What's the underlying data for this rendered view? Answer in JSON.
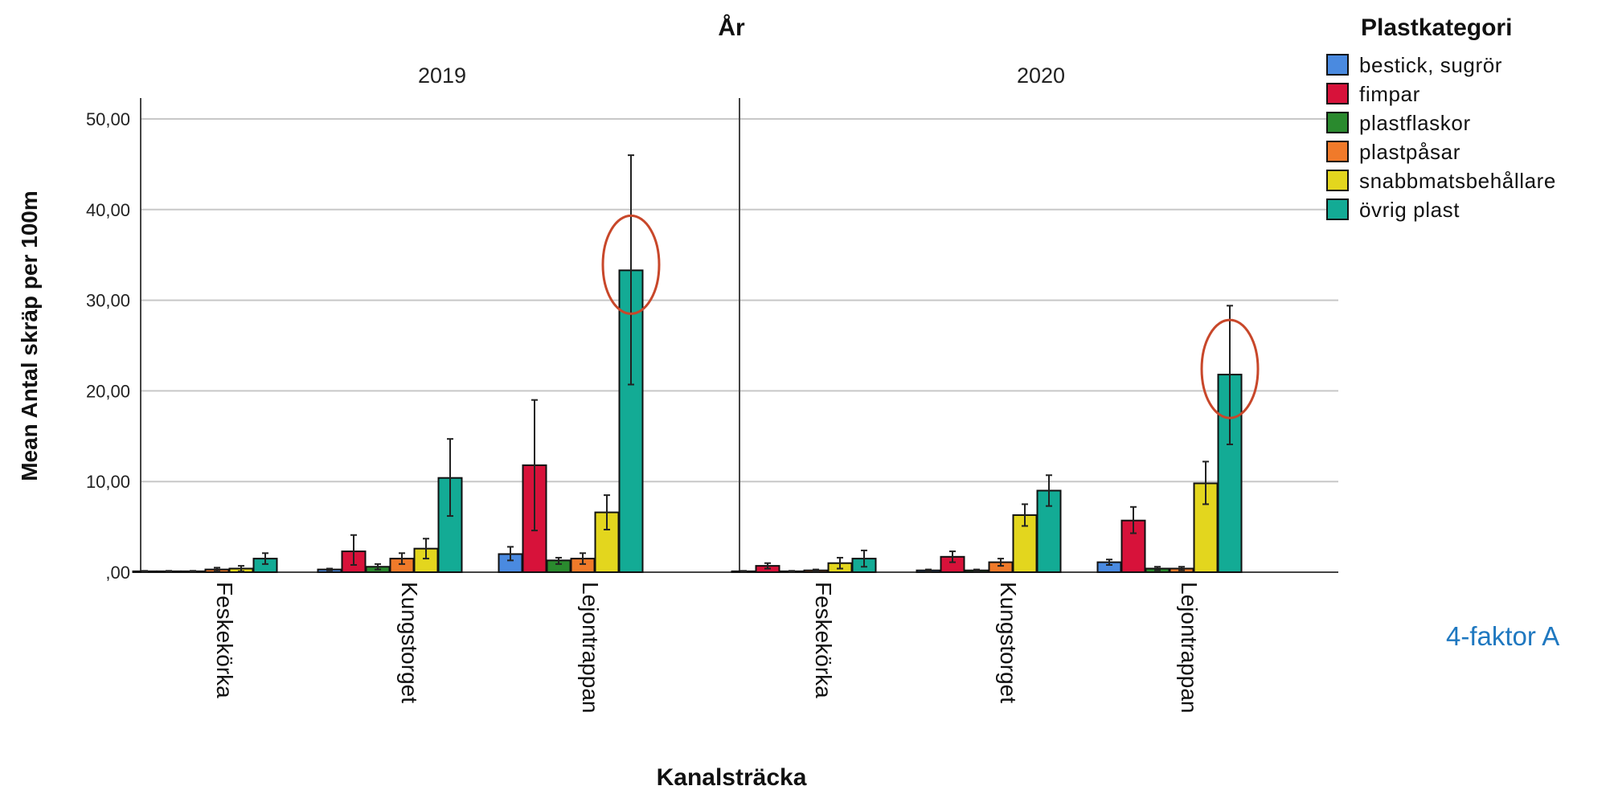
{
  "chart_data": {
    "type": "bar",
    "panel_title": "År",
    "panels": [
      "2019",
      "2020"
    ],
    "categories": [
      "Feskekörka",
      "Kungstorget",
      "Lejontrappan"
    ],
    "xlabel": "Kanalsträcka",
    "ylabel": "Mean Antal skräp per 100m",
    "ylim": [
      0,
      52
    ],
    "yticks": [
      {
        "value": 0,
        "label": ",00"
      },
      {
        "value": 10,
        "label": "10,00"
      },
      {
        "value": 20,
        "label": "20,00"
      },
      {
        "value": 30,
        "label": "30,00"
      },
      {
        "value": 40,
        "label": "40,00"
      },
      {
        "value": 50,
        "label": "50,00"
      }
    ],
    "grid": true,
    "legend": {
      "title": "Plastkategori",
      "position": "top-right"
    },
    "series": [
      {
        "name": "bestick, sugrör",
        "color": "#4a8ae0",
        "values": {
          "2019": [
            0.1,
            0.3,
            2.0
          ],
          "2020": [
            0.1,
            0.2,
            1.1
          ]
        },
        "errors": {
          "2019": [
            [
              0.05,
              0.15
            ],
            [
              0.2,
              0.4
            ],
            [
              1.3,
              2.8
            ]
          ],
          "2020": [
            [
              0.05,
              0.15
            ],
            [
              0.1,
              0.3
            ],
            [
              0.8,
              1.4
            ]
          ]
        }
      },
      {
        "name": "fimpar",
        "color": "#d7123a",
        "values": {
          "2019": [
            0.1,
            2.3,
            11.8
          ],
          "2020": [
            0.7,
            1.7,
            5.7
          ]
        },
        "errors": {
          "2019": [
            [
              0.05,
              0.15
            ],
            [
              0.8,
              4.1
            ],
            [
              4.6,
              19.0
            ]
          ],
          "2020": [
            [
              0.4,
              1.0
            ],
            [
              1.1,
              2.3
            ],
            [
              4.3,
              7.2
            ]
          ]
        }
      },
      {
        "name": "plastflaskor",
        "color": "#2a8a2e",
        "values": {
          "2019": [
            0.1,
            0.6,
            1.3
          ],
          "2020": [
            0.1,
            0.2,
            0.4
          ]
        },
        "errors": {
          "2019": [
            [
              0.05,
              0.15
            ],
            [
              0.3,
              0.9
            ],
            [
              0.9,
              1.6
            ]
          ],
          "2020": [
            [
              0.05,
              0.15
            ],
            [
              0.1,
              0.3
            ],
            [
              0.2,
              0.6
            ]
          ]
        }
      },
      {
        "name": "plastpåsar",
        "color": "#f07a2a",
        "values": {
          "2019": [
            0.3,
            1.5,
            1.5
          ],
          "2020": [
            0.2,
            1.1,
            0.4
          ]
        },
        "errors": {
          "2019": [
            [
              0.1,
              0.5
            ],
            [
              0.9,
              2.1
            ],
            [
              0.9,
              2.1
            ]
          ],
          "2020": [
            [
              0.1,
              0.3
            ],
            [
              0.7,
              1.5
            ],
            [
              0.2,
              0.6
            ]
          ]
        }
      },
      {
        "name": "snabbmatsbehållare",
        "color": "#e3d61e",
        "values": {
          "2019": [
            0.4,
            2.6,
            6.6
          ],
          "2020": [
            1.0,
            6.3,
            9.8
          ]
        },
        "errors": {
          "2019": [
            [
              0.1,
              0.7
            ],
            [
              1.5,
              3.7
            ],
            [
              4.7,
              8.5
            ]
          ],
          "2020": [
            [
              0.4,
              1.6
            ],
            [
              5.1,
              7.5
            ],
            [
              7.5,
              12.2
            ]
          ]
        }
      },
      {
        "name": "övrig plast",
        "color": "#13ab95",
        "values": {
          "2019": [
            1.5,
            10.4,
            33.3
          ],
          "2020": [
            1.5,
            9.0,
            21.8
          ]
        },
        "errors": {
          "2019": [
            [
              0.9,
              2.1
            ],
            [
              6.2,
              14.7
            ],
            [
              20.7,
              46.0
            ]
          ],
          "2020": [
            [
              0.6,
              2.4
            ],
            [
              7.3,
              10.7
            ],
            [
              14.1,
              29.4
            ]
          ]
        }
      }
    ],
    "annotations": [
      {
        "type": "ellipse",
        "panel": "2019",
        "category": "Lejontrappan",
        "series": "övrig plast",
        "color": "#c8472a"
      },
      {
        "type": "ellipse",
        "panel": "2020",
        "category": "Lejontrappan",
        "series": "övrig plast",
        "color": "#c8472a"
      }
    ]
  },
  "side_note": "4-faktor A"
}
